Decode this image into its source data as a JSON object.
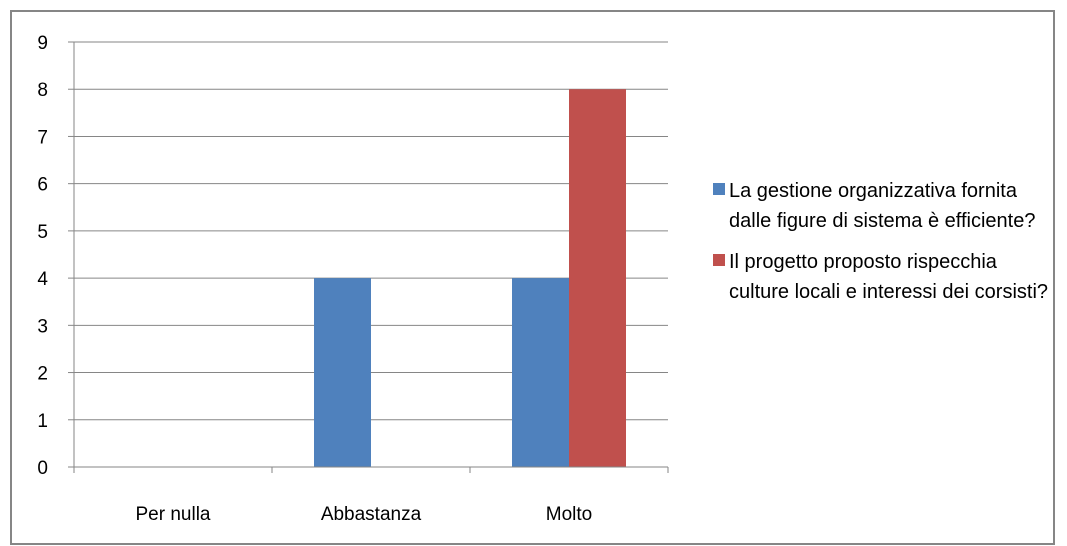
{
  "chart_data": {
    "type": "bar",
    "categories": [
      "Per nulla",
      "Abbastanza",
      "Molto"
    ],
    "series": [
      {
        "name": "La gestione organizzativa fornita dalle figure di sistema è efficiente?",
        "color": "#4F81BD",
        "values": [
          0,
          4,
          4
        ]
      },
      {
        "name": "Il progetto proposto rispecchia culture locali e interessi dei corsisti?",
        "color": "#C0504D",
        "values": [
          0,
          0,
          8
        ]
      }
    ],
    "yticks": [
      "0",
      "1",
      "2",
      "3",
      "4",
      "5",
      "6",
      "7",
      "8",
      "9"
    ],
    "ylim": [
      0,
      9
    ],
    "grid": true,
    "legend_position": "right",
    "axis_color": "#868686",
    "grid_color": "#868686"
  }
}
